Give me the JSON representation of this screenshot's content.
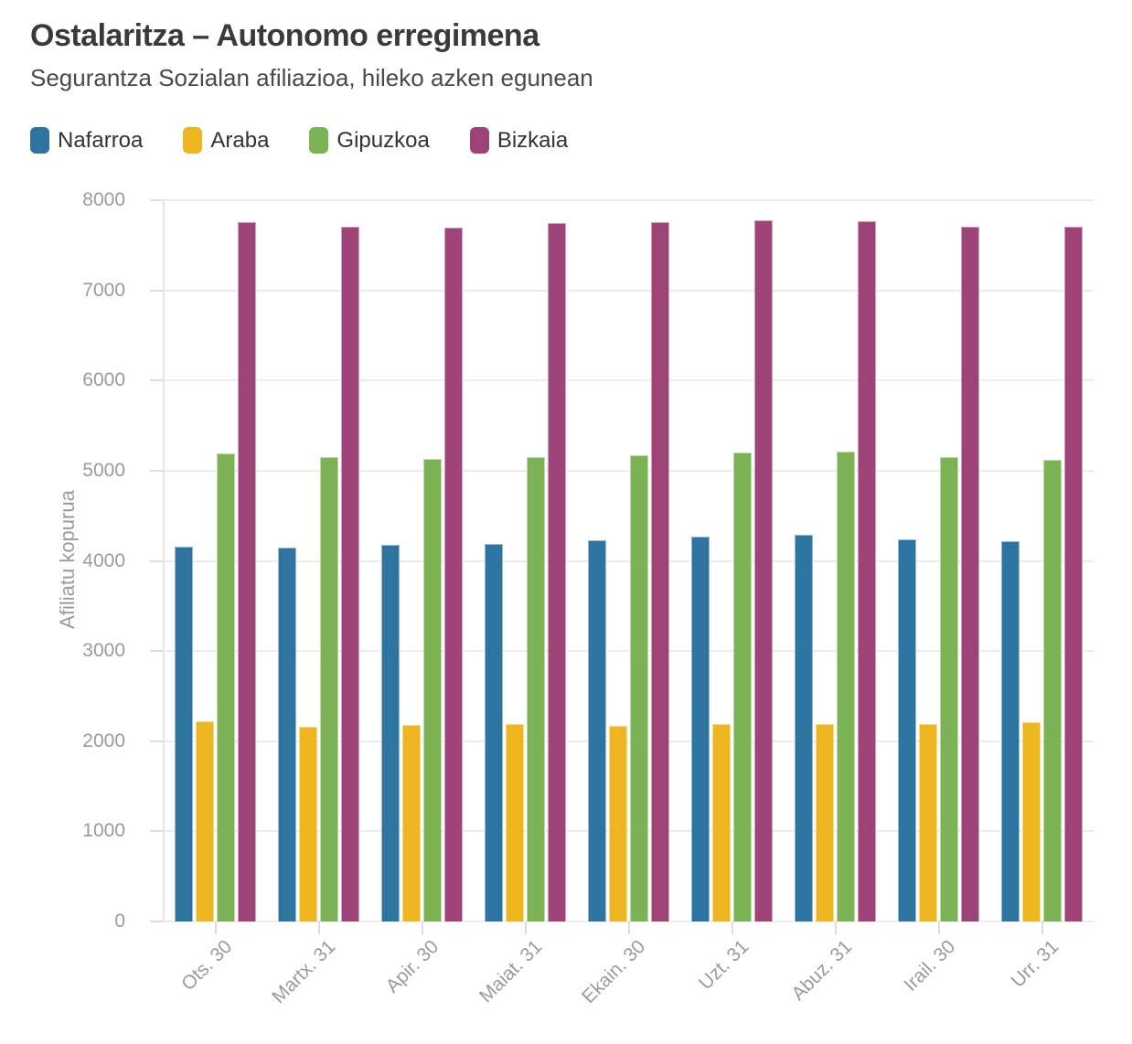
{
  "header": {
    "title": "Ostalaritza – Autonomo erregimena",
    "subtitle": "Segurantza Sozialan afiliazioa, hileko azken egunean"
  },
  "chart_data": {
    "type": "bar",
    "title": "Ostalaritza – Autonomo erregimena",
    "subtitle": "Segurantza Sozialan afiliazioa, hileko azken egunean",
    "categories": [
      "Ots. 30",
      "Martx. 31",
      "Apir. 30",
      "Maiat. 31",
      "Ekain. 30",
      "Uzt. 31",
      "Abuz. 31",
      "Irail. 30",
      "Urr. 31"
    ],
    "series": [
      {
        "name": "Nafarroa",
        "color": "#2E74A0",
        "values": [
          4155,
          4145,
          4175,
          4190,
          4230,
          4270,
          4285,
          4235,
          4215
        ]
      },
      {
        "name": "Araba",
        "color": "#EDB51F",
        "values": [
          2225,
          2155,
          2180,
          2190,
          2165,
          2195,
          2190,
          2190,
          2210
        ]
      },
      {
        "name": "Gipuzkoa",
        "color": "#7CB355",
        "values": [
          5195,
          5150,
          5135,
          5150,
          5175,
          5205,
          5210,
          5150,
          5120
        ]
      },
      {
        "name": "Bizkaia",
        "color": "#9E4377",
        "values": [
          7755,
          7710,
          7695,
          7745,
          7755,
          7780,
          7770,
          7710,
          7705
        ]
      }
    ],
    "xlabel": "",
    "ylabel": "Afiliatu kopurua",
    "ylim": [
      0,
      8000
    ],
    "ytick_step": 1000,
    "ytick_labels": [
      "0",
      "1000",
      "2000",
      "3000",
      "4000",
      "5000",
      "6000",
      "7000",
      "8000"
    ],
    "grid": true,
    "legend_position": "top-left",
    "background_color": "#ffffff",
    "gridline_color": "#ececec",
    "tick_label_color": "#9b9b9b"
  }
}
